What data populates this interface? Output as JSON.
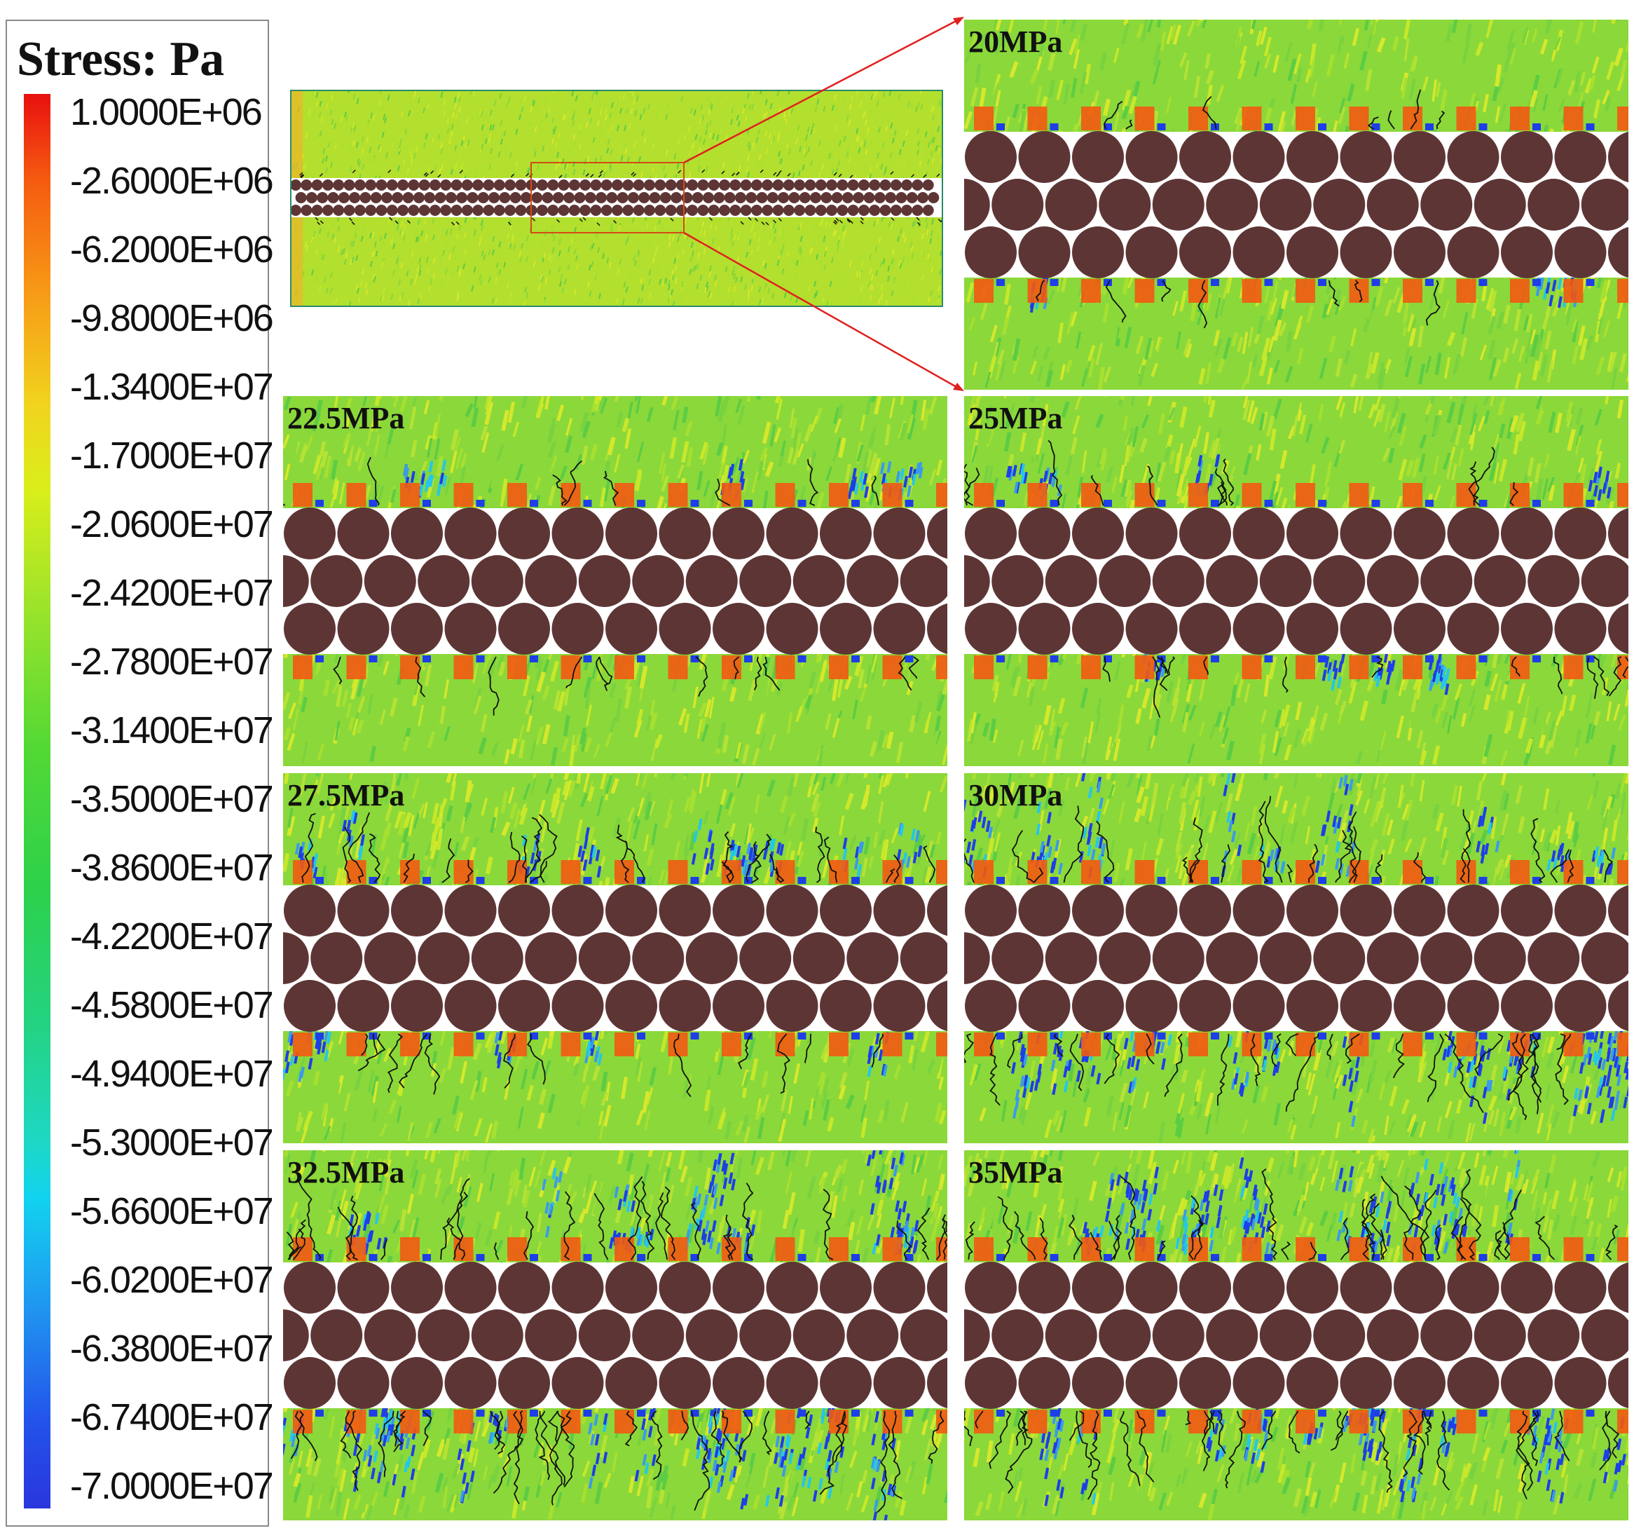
{
  "legend": {
    "title": "Stress:  Pa",
    "ticks": [
      "1.0000E+06",
      "-2.6000E+06",
      "-6.2000E+06",
      "-9.8000E+06",
      "-1.3400E+07",
      "-1.7000E+07",
      "-2.0600E+07",
      "-2.4200E+07",
      "-2.7800E+07",
      "-3.1400E+07",
      "-3.5000E+07",
      "-3.8600E+07",
      "-4.2200E+07",
      "-4.5800E+07",
      "-4.9400E+07",
      "-5.3000E+07",
      "-5.6600E+07",
      "-6.0200E+07",
      "-6.3800E+07",
      "-6.7400E+07",
      "-7.0000E+07"
    ],
    "colors": [
      "#e81010",
      "#f79a16",
      "#d9ee1a",
      "#54d934",
      "#1ed8c4",
      "#2352ea"
    ]
  },
  "panels": [
    {
      "label": "20MPa",
      "damage": 0.1,
      "blue": 0.05
    },
    {
      "label": "22.5MPa",
      "damage": 0.2,
      "blue": 0.1
    },
    {
      "label": "25MPa",
      "damage": 0.3,
      "blue": 0.15
    },
    {
      "label": "27.5MPa",
      "damage": 0.5,
      "blue": 0.25
    },
    {
      "label": "30MPa",
      "damage": 0.7,
      "blue": 0.55
    },
    {
      "label": "32.5MPa",
      "damage": 0.85,
      "blue": 0.6
    },
    {
      "label": "35MPa",
      "damage": 0.95,
      "blue": 0.6
    }
  ],
  "palette": {
    "particle": "#5e3535",
    "compressive_tip": "#f25a12",
    "tensile_zone": "#1e3ee8",
    "background_green": "#8bd83a",
    "background_yellow": "#d6e82c",
    "crack": "#111111",
    "zoom_lines": "#e0201e"
  }
}
